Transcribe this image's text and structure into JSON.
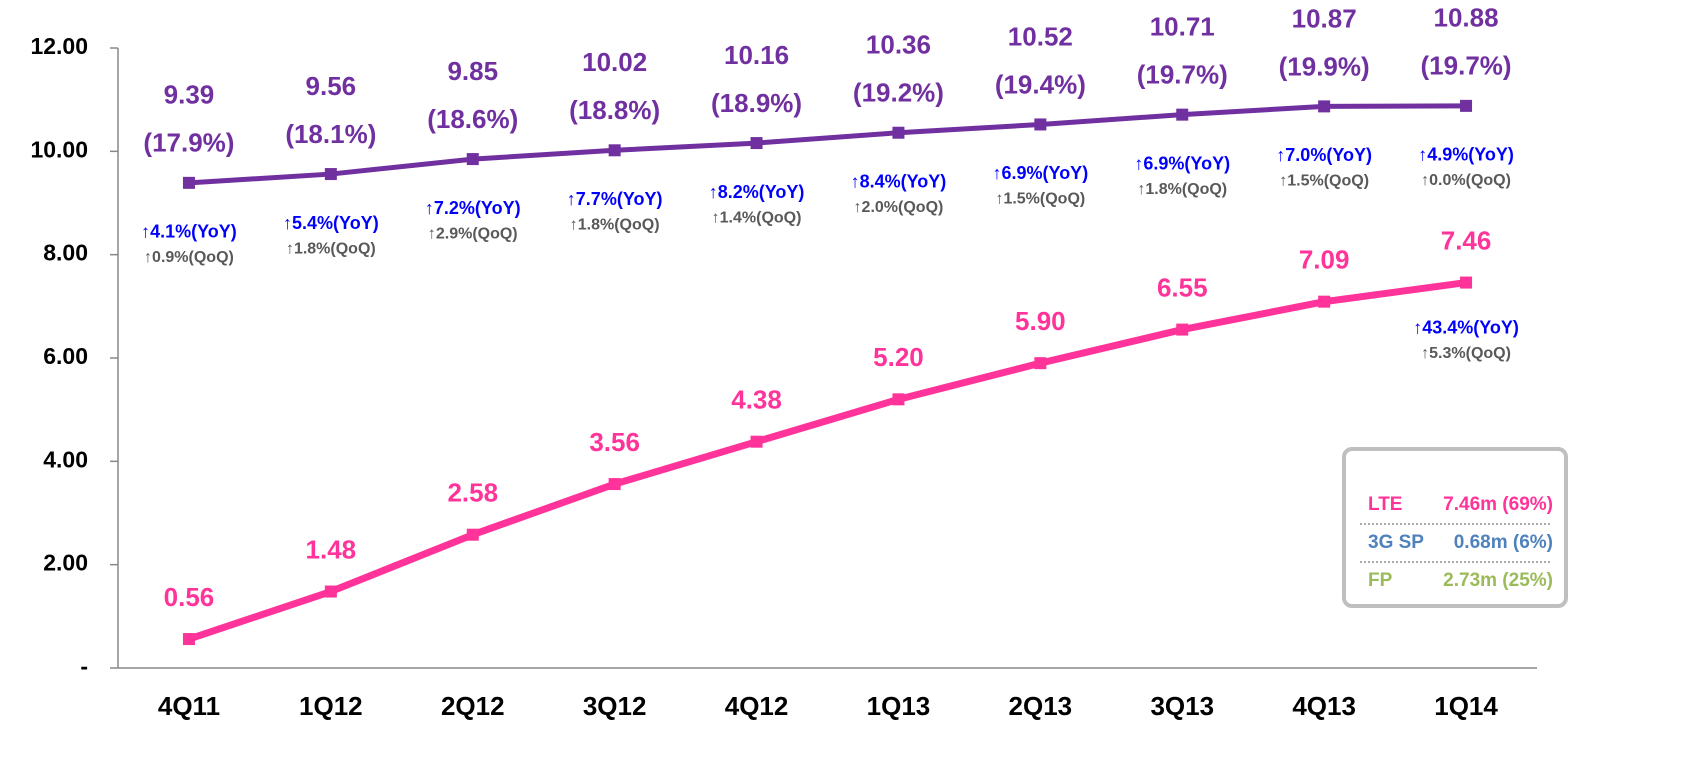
{
  "chart_data": {
    "type": "line",
    "categories": [
      "4Q11",
      "1Q12",
      "2Q12",
      "3Q12",
      "4Q12",
      "1Q13",
      "2Q13",
      "3Q13",
      "4Q13",
      "1Q14"
    ],
    "ylim": [
      0,
      12
    ],
    "yticks": [
      {
        "value": 0,
        "label": "-"
      },
      {
        "value": 2,
        "label": "2.00"
      },
      {
        "value": 4,
        "label": "4.00"
      },
      {
        "value": 6,
        "label": "6.00"
      },
      {
        "value": 8,
        "label": "8.00"
      },
      {
        "value": 10,
        "label": "10.00"
      },
      {
        "value": 12,
        "label": "12.00"
      }
    ],
    "grid": false,
    "series": [
      {
        "color": "#7030a0",
        "values": [
          9.39,
          9.56,
          9.85,
          10.02,
          10.16,
          10.36,
          10.52,
          10.71,
          10.87,
          10.88
        ],
        "value_labels": [
          "9.39",
          "9.56",
          "9.85",
          "10.02",
          "10.16",
          "10.36",
          "10.52",
          "10.71",
          "10.87",
          "10.88"
        ],
        "shares": [
          "(17.9%)",
          "(18.1%)",
          "(18.6%)",
          "(18.8%)",
          "(18.9%)",
          "(19.2%)",
          "(19.4%)",
          "(19.7%)",
          "(19.9%)",
          "(19.7%)"
        ],
        "yoy": [
          "↑4.1%(YoY)",
          "↑5.4%(YoY)",
          "↑7.2%(YoY)",
          "↑7.7%(YoY)",
          "↑8.2%(YoY)",
          "↑8.4%(YoY)",
          "↑6.9%(YoY)",
          "↑6.9%(YoY)",
          "↑7.0%(YoY)",
          "↑4.9%(YoY)"
        ],
        "qoq": [
          "↑0.9%(QoQ)",
          "↑1.8%(QoQ)",
          "↑2.9%(QoQ)",
          "↑1.8%(QoQ)",
          "↑1.4%(QoQ)",
          "↑2.0%(QoQ)",
          "↑1.5%(QoQ)",
          "↑1.8%(QoQ)",
          "↑1.5%(QoQ)",
          "↑0.0%(QoQ)"
        ]
      },
      {
        "color": "#ff3399",
        "values": [
          0.56,
          1.48,
          2.58,
          3.56,
          4.38,
          5.2,
          5.9,
          6.55,
          7.09,
          7.46
        ],
        "value_labels": [
          "0.56",
          "1.48",
          "2.58",
          "3.56",
          "4.38",
          "5.20",
          "5.90",
          "6.55",
          "7.09",
          "7.46"
        ],
        "yoy": [
          null,
          null,
          null,
          null,
          null,
          null,
          null,
          null,
          null,
          "↑43.4%(YoY)"
        ],
        "qoq": [
          null,
          null,
          null,
          null,
          null,
          null,
          null,
          null,
          null,
          "↑5.3%(QoQ)"
        ]
      }
    ],
    "box": {
      "rows": [
        {
          "label": "LTE",
          "value": "7.46m (69%)",
          "color": "#ff3399"
        },
        {
          "label": "3G SP",
          "value": "0.68m (6%)",
          "color": "#4f81bd"
        },
        {
          "label": "FP",
          "value": "2.73m (25%)",
          "color": "#9bbb59"
        }
      ]
    }
  }
}
